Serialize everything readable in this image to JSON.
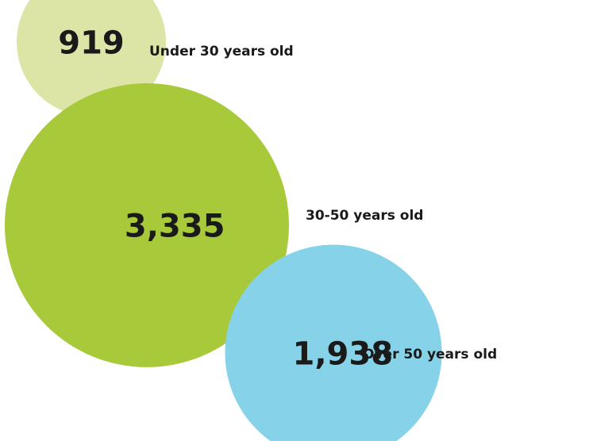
{
  "chart_data": {
    "type": "bubble",
    "title": "",
    "series": [
      {
        "name": "Under 30 years old",
        "value": 919,
        "value_label": "919",
        "label": "Under 30 years old",
        "color": "#dde5a6"
      },
      {
        "name": "30-50 years old",
        "value": 3335,
        "value_label": "3,335",
        "label": "30-50 years old",
        "color": "#a8c93a"
      },
      {
        "name": "Over 50 years old",
        "value": 1938,
        "value_label": "1,938",
        "label": "Over 50 years old",
        "color": "#86d2e8"
      }
    ]
  }
}
